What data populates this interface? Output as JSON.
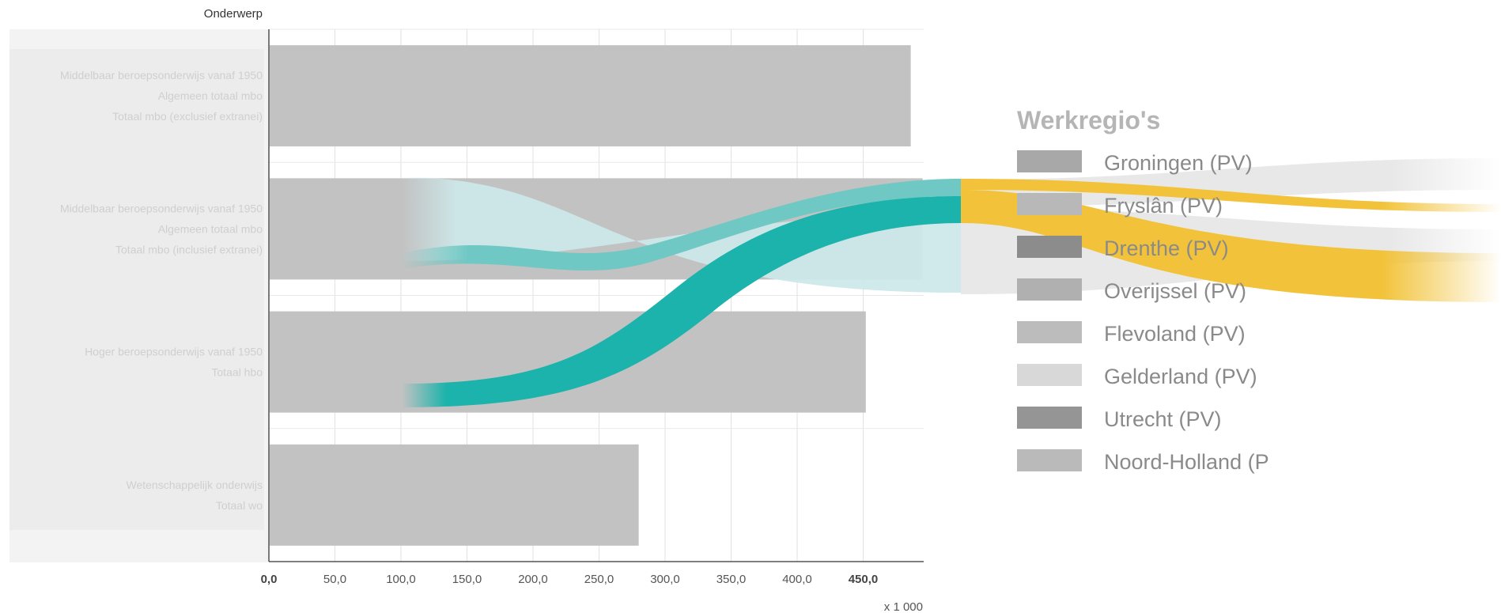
{
  "chart_data": {
    "type": "bar",
    "orientation": "horizontal",
    "axis_title": "Onderwerp",
    "categories": [
      [
        "Middelbaar beroepsonderwijs vanaf 1950",
        "Algemeen totaal mbo",
        "Totaal mbo (exclusief extranei)"
      ],
      [
        "Middelbaar beroepsonderwijs vanaf 1950",
        "Algemeen totaal mbo",
        "Totaal mbo (inclusief extranei)"
      ],
      [
        "Hoger beroepsonderwijs vanaf 1950",
        "Totaal hbo"
      ],
      [
        "Wetenschappelijk onderwijs",
        "Totaal wo"
      ]
    ],
    "values": [
      486,
      495,
      452,
      280
    ],
    "xlim": [
      0,
      495
    ],
    "ticks": [
      "0,0",
      "50,0",
      "100,0",
      "150,0",
      "200,0",
      "250,0",
      "300,0",
      "350,0",
      "400,0",
      "450,0"
    ],
    "bold_ticks": [
      "0,0",
      "450,0"
    ],
    "unit": "x 1 000",
    "grid": true,
    "legend": {
      "title": "Werkregio's",
      "placement": "right",
      "items": [
        {
          "label": "Groningen (PV)",
          "color": "#a8a8a8"
        },
        {
          "label": "Fryslân (PV)",
          "color": "#b8b8b8"
        },
        {
          "label": "Drenthe (PV)",
          "color": "#8c8c8c"
        },
        {
          "label": "Overijssel (PV)",
          "color": "#b0b0b0"
        },
        {
          "label": "Flevoland (PV)",
          "color": "#bcbcbc"
        },
        {
          "label": "Gelderland (PV)",
          "color": "#d8d8d8"
        },
        {
          "label": "Utrecht (PV)",
          "color": "#959595"
        },
        {
          "label": "Noord-Holland (P",
          "color": "#bababa"
        }
      ]
    },
    "colors": {
      "bar": "#c2c2c2",
      "teal": "#1bb3ab",
      "teal_light": "#6fc8c4",
      "cyan_pale": "#cde8ea",
      "yellow": "#f2c33a"
    }
  }
}
